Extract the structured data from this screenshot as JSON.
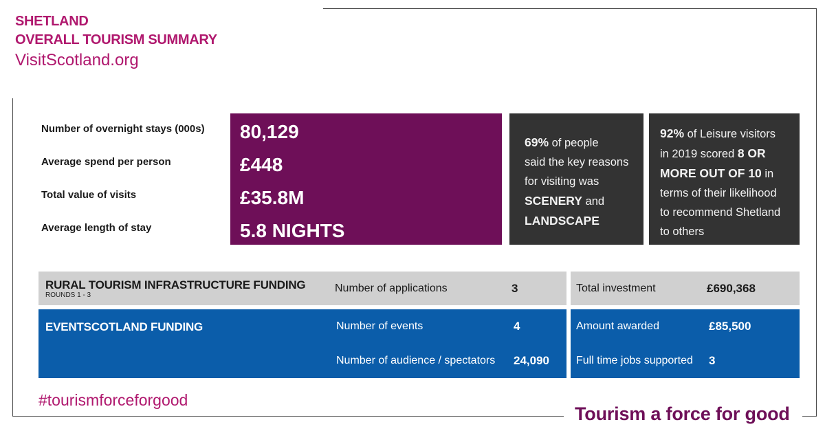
{
  "header": {
    "title_line1": "SHETLAND",
    "title_line2": "OVERALL TOURISM SUMMARY",
    "website": "VisitScotland.org"
  },
  "stats": [
    {
      "label": "Number of overnight stays (000s)",
      "value": "80,129"
    },
    {
      "label": "Average spend per person",
      "value": "£448"
    },
    {
      "label": "Total value of visits",
      "value": "£35.8M"
    },
    {
      "label": "Average length of stay",
      "value": "5.8 NIGHTS"
    }
  ],
  "scenery_box": {
    "pct": "69%",
    "t1": " of people",
    "t2": "said the key reasons",
    "t3": "for visiting was",
    "scenery": "SCENERY",
    "and": " and",
    "landscape": "LANDSCAPE"
  },
  "recommend_box": {
    "pct": "92%",
    "t1": " of Leisure visitors",
    "t2": "in 2019 scored ",
    "score_a": "8 OR",
    "score_b": "MORE OUT OF 10",
    "t3": " in",
    "t4": "terms of their likelihood",
    "t5": "to recommend Shetland",
    "t6": "to others"
  },
  "rural": {
    "title": "RURAL TOURISM INFRASTRUCTURE FUNDING",
    "subtitle": "ROUNDS 1 - 3",
    "applications_label": "Number of applications",
    "applications_value": "3",
    "investment_label": "Total investment",
    "investment_value": "£690,368"
  },
  "events": {
    "title": "EVENTSCOTLAND FUNDING",
    "events_label": "Number of events",
    "events_value": "4",
    "audience_label": "Number of audience / spectators",
    "audience_value": "24,090",
    "awarded_label": "Amount awarded",
    "awarded_value": "£85,500",
    "jobs_label": "Full time jobs supported",
    "jobs_value": "3"
  },
  "footer": {
    "hashtag": "#tourismforceforgood",
    "tagline": "Tourism a force for good"
  },
  "colors": {
    "magenta": "#b0186e",
    "purple": "#6e0f58",
    "dark": "#333333",
    "grey": "#d0d0d0",
    "blue": "#0b5daa"
  }
}
